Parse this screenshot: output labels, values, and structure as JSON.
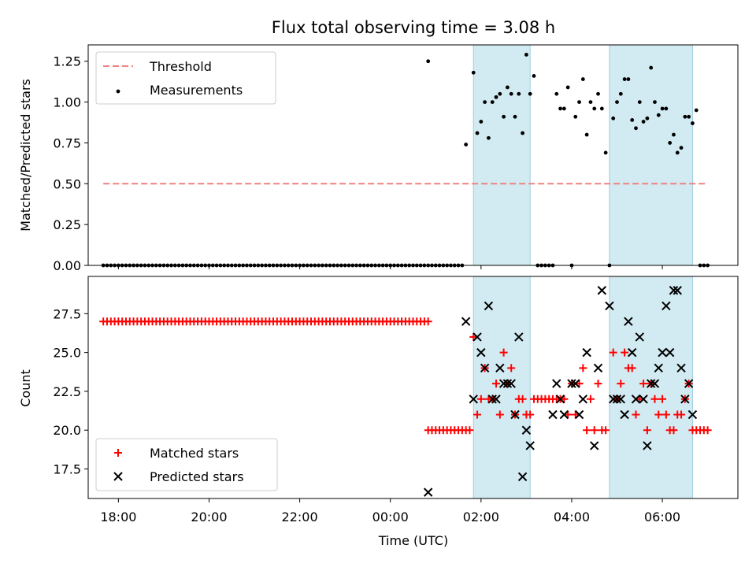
{
  "chart_data": [
    {
      "type": "scatter",
      "title": "Flux total observing time = 3.08 h",
      "xlabel": "",
      "ylabel": "Matched/Predicted stars",
      "xlim": [
        "17:20",
        "07:40"
      ],
      "ylim": [
        0.0,
        1.35
      ],
      "y_ticks": [
        "0.00",
        "0.25",
        "0.50",
        "0.75",
        "1.00",
        "1.25"
      ],
      "shaded_intervals": [
        [
          "01:50",
          "03:05"
        ],
        [
          "04:50",
          "06:40"
        ]
      ],
      "shade_color": "#add8e6",
      "legend_position": "upper left",
      "legend": [
        "Threshold",
        "Measurements"
      ],
      "series": [
        {
          "name": "Threshold",
          "style": "dashed-line",
          "color": "#f08080",
          "x": [
            "17:40",
            "07:00"
          ],
          "y": [
            0.5,
            0.5
          ]
        },
        {
          "name": "Measurements",
          "style": "dot",
          "color": "#000000",
          "points": [
            [
              "00:50",
              1.25
            ],
            [
              "01:40",
              0.74
            ],
            [
              "01:50",
              1.18
            ],
            [
              "01:55",
              0.81
            ],
            [
              "02:00",
              0.88
            ],
            [
              "02:05",
              1.0
            ],
            [
              "02:10",
              0.78
            ],
            [
              "02:15",
              1.0
            ],
            [
              "02:20",
              1.03
            ],
            [
              "02:25",
              1.05
            ],
            [
              "02:30",
              0.91
            ],
            [
              "02:35",
              1.09
            ],
            [
              "02:40",
              1.05
            ],
            [
              "02:45",
              0.91
            ],
            [
              "02:50",
              1.05
            ],
            [
              "02:55",
              0.81
            ],
            [
              "03:00",
              1.29
            ],
            [
              "03:05",
              1.05
            ],
            [
              "03:10",
              1.16
            ],
            [
              "03:40",
              1.05
            ],
            [
              "03:45",
              0.96
            ],
            [
              "03:50",
              0.96
            ],
            [
              "03:55",
              1.09
            ],
            [
              "04:05",
              0.91
            ],
            [
              "04:10",
              1.0
            ],
            [
              "04:15",
              1.14
            ],
            [
              "04:20",
              0.8
            ],
            [
              "04:25",
              1.0
            ],
            [
              "04:30",
              0.96
            ],
            [
              "04:35",
              1.05
            ],
            [
              "04:40",
              0.96
            ],
            [
              "04:45",
              0.69
            ],
            [
              "04:55",
              0.9
            ],
            [
              "05:00",
              1.0
            ],
            [
              "05:05",
              1.05
            ],
            [
              "05:10",
              1.14
            ],
            [
              "05:15",
              1.14
            ],
            [
              "05:20",
              0.89
            ],
            [
              "05:25",
              0.84
            ],
            [
              "05:30",
              1.0
            ],
            [
              "05:35",
              0.88
            ],
            [
              "05:40",
              0.9
            ],
            [
              "05:45",
              1.21
            ],
            [
              "05:50",
              1.0
            ],
            [
              "05:55",
              0.92
            ],
            [
              "06:00",
              0.96
            ],
            [
              "06:05",
              0.96
            ],
            [
              "06:10",
              0.75
            ],
            [
              "06:15",
              0.8
            ],
            [
              "06:20",
              0.69
            ],
            [
              "06:25",
              0.72
            ],
            [
              "06:30",
              0.91
            ],
            [
              "06:35",
              0.91
            ],
            [
              "06:40",
              0.87
            ],
            [
              "06:45",
              0.95
            ]
          ],
          "zero_runs": [
            {
              "from": "17:40",
              "to": "00:50",
              "step_min": 5
            },
            {
              "from": "00:55",
              "to": "01:35",
              "step_min": 5
            },
            {
              "from": "03:15",
              "to": "03:35",
              "step_min": 5
            },
            {
              "from": "04:00",
              "to": "04:00",
              "step_min": 5
            },
            {
              "from": "04:50",
              "to": "04:50",
              "step_min": 5
            },
            {
              "from": "06:50",
              "to": "07:00",
              "step_min": 5
            }
          ]
        }
      ]
    },
    {
      "type": "scatter",
      "title": "",
      "xlabel": "Time (UTC)",
      "ylabel": "Count",
      "xlim": [
        "17:20",
        "07:40"
      ],
      "ylim": [
        15.6,
        29.9
      ],
      "y_ticks": [
        "17.5",
        "20.0",
        "22.5",
        "25.0",
        "27.5"
      ],
      "x_ticks": [
        "18:00",
        "20:00",
        "22:00",
        "00:00",
        "02:00",
        "04:00",
        "06:00"
      ],
      "shaded_intervals": [
        [
          "01:50",
          "03:05"
        ],
        [
          "04:50",
          "06:40"
        ]
      ],
      "shade_color": "#add8e6",
      "legend_position": "lower left",
      "legend": [
        "Matched stars",
        "Predicted stars"
      ],
      "series": [
        {
          "name": "Matched stars",
          "marker": "plus",
          "color": "#ff0000",
          "runs": [
            {
              "from": "17:40",
              "to": "00:50",
              "step_min": 5,
              "y": 27
            },
            {
              "from": "00:50",
              "to": "01:45",
              "step_min": 5,
              "y": 20
            }
          ],
          "points": [
            [
              "01:50",
              26
            ],
            [
              "01:55",
              21
            ],
            [
              "02:00",
              22
            ],
            [
              "02:05",
              24
            ],
            [
              "02:10",
              22
            ],
            [
              "02:15",
              22
            ],
            [
              "02:20",
              23
            ],
            [
              "02:25",
              21
            ],
            [
              "02:30",
              25
            ],
            [
              "02:35",
              23
            ],
            [
              "02:40",
              24
            ],
            [
              "02:45",
              21
            ],
            [
              "02:50",
              22
            ],
            [
              "02:55",
              22
            ],
            [
              "03:00",
              21
            ],
            [
              "03:05",
              21
            ],
            [
              "03:10",
              22
            ],
            [
              "03:15",
              22
            ],
            [
              "03:20",
              22
            ],
            [
              "03:25",
              22
            ],
            [
              "03:30",
              22
            ],
            [
              "03:35",
              22
            ],
            [
              "03:40",
              22
            ],
            [
              "03:45",
              22
            ],
            [
              "03:50",
              22
            ],
            [
              "03:55",
              21
            ],
            [
              "04:00",
              23
            ],
            [
              "04:05",
              21
            ],
            [
              "04:10",
              23
            ],
            [
              "04:15",
              24
            ],
            [
              "04:20",
              20
            ],
            [
              "04:25",
              22
            ],
            [
              "04:30",
              20
            ],
            [
              "04:35",
              23
            ],
            [
              "04:40",
              20
            ],
            [
              "04:45",
              20
            ],
            [
              "04:55",
              25
            ],
            [
              "05:00",
              22
            ],
            [
              "05:05",
              23
            ],
            [
              "05:10",
              25
            ],
            [
              "05:15",
              24
            ],
            [
              "05:20",
              24
            ],
            [
              "05:25",
              21
            ],
            [
              "05:30",
              22
            ],
            [
              "05:35",
              23
            ],
            [
              "05:40",
              20
            ],
            [
              "05:45",
              23
            ],
            [
              "05:50",
              22
            ],
            [
              "05:55",
              21
            ],
            [
              "06:00",
              22
            ],
            [
              "06:05",
              21
            ],
            [
              "06:10",
              20
            ],
            [
              "06:15",
              20
            ],
            [
              "06:20",
              21
            ],
            [
              "06:25",
              21
            ],
            [
              "06:30",
              22
            ],
            [
              "06:35",
              23
            ],
            [
              "06:40",
              20
            ],
            [
              "06:45",
              20
            ],
            [
              "06:50",
              20
            ],
            [
              "06:55",
              20
            ],
            [
              "07:00",
              20
            ]
          ]
        },
        {
          "name": "Predicted stars",
          "marker": "x",
          "color": "#000000",
          "points": [
            [
              "00:50",
              16
            ],
            [
              "01:40",
              27
            ],
            [
              "01:50",
              22
            ],
            [
              "01:55",
              26
            ],
            [
              "02:00",
              25
            ],
            [
              "02:05",
              24
            ],
            [
              "02:10",
              28
            ],
            [
              "02:15",
              22
            ],
            [
              "02:20",
              22
            ],
            [
              "02:25",
              24
            ],
            [
              "02:30",
              23
            ],
            [
              "02:35",
              23
            ],
            [
              "02:40",
              23
            ],
            [
              "02:45",
              21
            ],
            [
              "02:50",
              26
            ],
            [
              "02:55",
              17
            ],
            [
              "03:00",
              20
            ],
            [
              "03:05",
              19
            ],
            [
              "03:35",
              21
            ],
            [
              "03:40",
              23
            ],
            [
              "03:45",
              22
            ],
            [
              "03:50",
              21
            ],
            [
              "04:00",
              23
            ],
            [
              "04:05",
              23
            ],
            [
              "04:10",
              21
            ],
            [
              "04:15",
              22
            ],
            [
              "04:20",
              25
            ],
            [
              "04:30",
              19
            ],
            [
              "04:35",
              24
            ],
            [
              "04:40",
              29
            ],
            [
              "04:50",
              28
            ],
            [
              "04:55",
              22
            ],
            [
              "05:00",
              22
            ],
            [
              "05:05",
              22
            ],
            [
              "05:10",
              21
            ],
            [
              "05:15",
              27
            ],
            [
              "05:20",
              25
            ],
            [
              "05:25",
              22
            ],
            [
              "05:30",
              26
            ],
            [
              "05:35",
              22
            ],
            [
              "05:40",
              19
            ],
            [
              "05:45",
              23
            ],
            [
              "05:50",
              23
            ],
            [
              "05:55",
              24
            ],
            [
              "06:00",
              25
            ],
            [
              "06:05",
              28
            ],
            [
              "06:10",
              25
            ],
            [
              "06:15",
              29
            ],
            [
              "06:20",
              29
            ],
            [
              "06:25",
              24
            ],
            [
              "06:30",
              22
            ],
            [
              "06:35",
              23
            ],
            [
              "06:40",
              21
            ]
          ]
        }
      ]
    }
  ]
}
